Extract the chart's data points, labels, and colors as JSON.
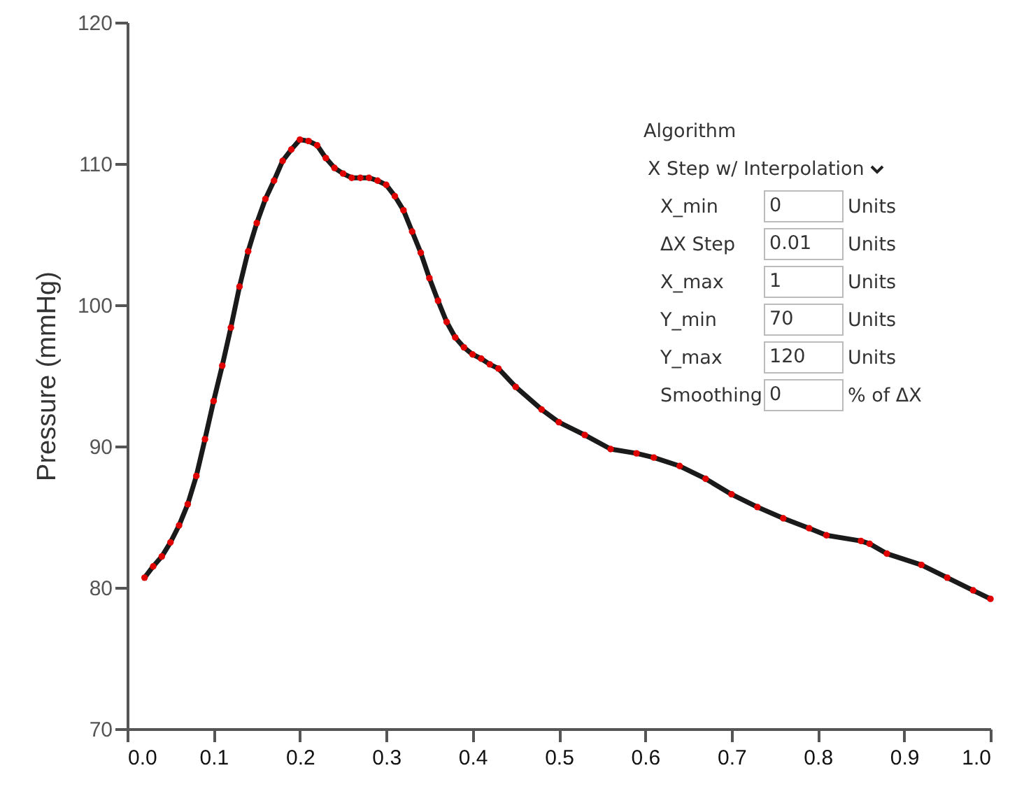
{
  "chart_data": {
    "type": "line",
    "ylabel": "Pressure (mmHg)",
    "xlim": [
      0,
      1
    ],
    "ylim": [
      70,
      120
    ],
    "xticks": [
      {
        "value": 0,
        "label": "0.0"
      },
      0.1,
      0.2,
      0.3,
      0.4,
      0.5,
      0.6,
      0.7,
      0.8,
      0.9,
      {
        "value": 1,
        "label": "1.0"
      }
    ],
    "yticks": [
      70,
      80,
      90,
      100,
      110,
      120
    ],
    "grid": false,
    "x": [
      0.02,
      0.03,
      0.04,
      0.05,
      0.06,
      0.07,
      0.08,
      0.09,
      0.1,
      0.11,
      0.12,
      0.13,
      0.14,
      0.15,
      0.16,
      0.17,
      0.18,
      0.19,
      0.2,
      0.21,
      0.22,
      0.23,
      0.24,
      0.25,
      0.26,
      0.27,
      0.28,
      0.29,
      0.3,
      0.31,
      0.32,
      0.33,
      0.34,
      0.35,
      0.36,
      0.37,
      0.38,
      0.39,
      0.4,
      0.41,
      0.42,
      0.43,
      0.45,
      0.48,
      0.5,
      0.53,
      0.56,
      0.59,
      0.61,
      0.64,
      0.67,
      0.7,
      0.73,
      0.76,
      0.79,
      0.81,
      0.85,
      0.86,
      0.88,
      0.92,
      0.95,
      0.98,
      1.0
    ],
    "series": [
      {
        "color": "#1a1a1a",
        "marker": "none",
        "line_style": "solid",
        "values": [
          80.7,
          81.5,
          82.2,
          83.2,
          84.4,
          85.9,
          87.9,
          90.5,
          93.2,
          95.7,
          98.4,
          101.3,
          103.8,
          105.8,
          107.5,
          108.8,
          110.2,
          111.0,
          111.7,
          111.6,
          111.3,
          110.4,
          109.7,
          109.3,
          109.0,
          109.0,
          109.0,
          108.8,
          108.5,
          107.7,
          106.7,
          105.2,
          103.7,
          101.9,
          100.3,
          98.8,
          97.7,
          97.0,
          96.5,
          96.2,
          95.8,
          95.5,
          94.2,
          92.6,
          91.7,
          90.8,
          89.8,
          89.5,
          89.2,
          88.6,
          87.7,
          86.6,
          85.7,
          84.9,
          84.2,
          83.7,
          83.3,
          83.1,
          82.4,
          81.6,
          80.7,
          79.8,
          79.2
        ]
      },
      {
        "type": "scatter",
        "color": "#e00000",
        "marker": "circle",
        "values": [
          80.7,
          81.5,
          82.2,
          83.2,
          84.4,
          85.9,
          87.9,
          90.5,
          93.2,
          95.7,
          98.4,
          101.3,
          103.8,
          105.8,
          107.5,
          108.8,
          110.2,
          111.0,
          111.7,
          111.6,
          111.3,
          110.4,
          109.7,
          109.3,
          109.0,
          109.0,
          109.0,
          108.8,
          108.5,
          107.7,
          106.7,
          105.2,
          103.7,
          101.9,
          100.3,
          98.8,
          97.7,
          97.0,
          96.5,
          96.2,
          95.8,
          95.5,
          94.2,
          92.6,
          91.7,
          90.8,
          89.8,
          89.5,
          89.2,
          88.6,
          87.7,
          86.6,
          85.7,
          84.9,
          84.2,
          83.7,
          83.3,
          83.1,
          82.4,
          81.6,
          80.7,
          79.8,
          79.2
        ]
      }
    ],
    "annotations": [
      "Algorithm",
      "X Step w/ Interpolation",
      "X_min",
      "0",
      "Units",
      "ΔX Step",
      "0.01",
      "Units",
      "X_max",
      "1",
      "Units",
      "Y_min",
      "70",
      "Units",
      "Y_max",
      "120",
      "Units",
      "Smoothing",
      "0",
      "% of ΔX"
    ]
  }
}
